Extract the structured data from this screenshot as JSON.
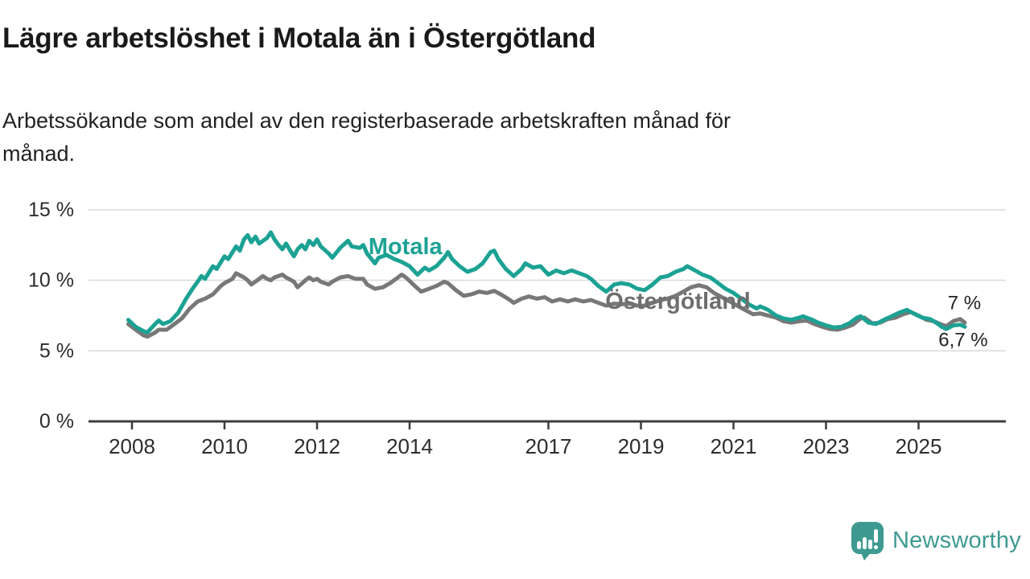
{
  "header": {
    "title": "Lägre arbetslöshet i Motala än i Östergötland",
    "subtitle_lines": [
      "Arbetssökande som andel av den registerbaserade arbetskraften månad för",
      "månad."
    ]
  },
  "footer": {
    "brand": "Newsworthy",
    "brand_color": "#3e9a90",
    "logo_icon": "speech-bubble-bar-chart-icon"
  },
  "chart_data": {
    "type": "line",
    "title": "Lägre arbetslöshet i Motala än i Östergötland",
    "unit": "%",
    "grid": true,
    "legend": "inline-labels",
    "colors": {
      "grid": "#d9d9d9",
      "axis": "#3c3c3c",
      "tick_text": "#2d2d2d"
    },
    "x_axis": {
      "range": [
        2007.05,
        2026.9
      ],
      "ticks": [
        {
          "year": 2008,
          "label": "2008"
        },
        {
          "year": 2010,
          "label": "2010"
        },
        {
          "year": 2012,
          "label": "2012"
        },
        {
          "year": 2014,
          "label": "2014"
        },
        {
          "year": 2017,
          "label": "2017"
        },
        {
          "year": 2019,
          "label": "2019"
        },
        {
          "year": 2021,
          "label": "2021"
        },
        {
          "year": 2023,
          "label": "2023"
        },
        {
          "year": 2025,
          "label": "2025"
        }
      ]
    },
    "y_axis": {
      "range": [
        0,
        15
      ],
      "unit": "%",
      "ticks": [
        {
          "value": 0,
          "label": "0 %"
        },
        {
          "value": 5,
          "label": "5 %"
        },
        {
          "value": 10,
          "label": "10 %"
        },
        {
          "value": 15,
          "label": "15 %"
        }
      ]
    },
    "series": [
      {
        "name": "Motala",
        "color": "#1ca294",
        "latest_value_label": "6,7 %",
        "points": [
          [
            2007.92,
            7.2
          ],
          [
            2008.08,
            6.7
          ],
          [
            2008.25,
            6.4
          ],
          [
            2008.33,
            6.3
          ],
          [
            2008.5,
            6.9
          ],
          [
            2008.58,
            7.15
          ],
          [
            2008.67,
            6.9
          ],
          [
            2008.83,
            7.1
          ],
          [
            2009.0,
            7.7
          ],
          [
            2009.17,
            8.7
          ],
          [
            2009.33,
            9.5
          ],
          [
            2009.42,
            9.9
          ],
          [
            2009.5,
            10.3
          ],
          [
            2009.58,
            10.1
          ],
          [
            2009.75,
            11.0
          ],
          [
            2009.83,
            10.8
          ],
          [
            2010.0,
            11.7
          ],
          [
            2010.08,
            11.5
          ],
          [
            2010.25,
            12.4
          ],
          [
            2010.33,
            12.1
          ],
          [
            2010.42,
            12.9
          ],
          [
            2010.5,
            13.2
          ],
          [
            2010.58,
            12.7
          ],
          [
            2010.67,
            13.1
          ],
          [
            2010.75,
            12.6
          ],
          [
            2010.92,
            13.0
          ],
          [
            2011.0,
            13.4
          ],
          [
            2011.08,
            12.9
          ],
          [
            2011.17,
            12.5
          ],
          [
            2011.25,
            12.2
          ],
          [
            2011.33,
            12.6
          ],
          [
            2011.42,
            12.1
          ],
          [
            2011.5,
            11.7
          ],
          [
            2011.58,
            12.2
          ],
          [
            2011.67,
            12.5
          ],
          [
            2011.75,
            12.2
          ],
          [
            2011.83,
            12.8
          ],
          [
            2011.92,
            12.5
          ],
          [
            2012.0,
            12.9
          ],
          [
            2012.08,
            12.4
          ],
          [
            2012.25,
            11.9
          ],
          [
            2012.33,
            11.6
          ],
          [
            2012.5,
            12.3
          ],
          [
            2012.67,
            12.8
          ],
          [
            2012.75,
            12.4
          ],
          [
            2012.92,
            12.3
          ],
          [
            2013.0,
            12.5
          ],
          [
            2013.08,
            11.9
          ],
          [
            2013.25,
            11.2
          ],
          [
            2013.33,
            11.6
          ],
          [
            2013.5,
            11.8
          ],
          [
            2013.67,
            11.5
          ],
          [
            2013.83,
            11.3
          ],
          [
            2014.0,
            11.0
          ],
          [
            2014.17,
            10.4
          ],
          [
            2014.33,
            10.9
          ],
          [
            2014.42,
            10.7
          ],
          [
            2014.58,
            11.0
          ],
          [
            2014.75,
            11.6
          ],
          [
            2014.83,
            12.0
          ],
          [
            2014.92,
            11.5
          ],
          [
            2015.08,
            11.0
          ],
          [
            2015.25,
            10.6
          ],
          [
            2015.42,
            10.8
          ],
          [
            2015.58,
            11.2
          ],
          [
            2015.75,
            12.0
          ],
          [
            2015.83,
            12.1
          ],
          [
            2015.92,
            11.5
          ],
          [
            2016.08,
            10.8
          ],
          [
            2016.25,
            10.3
          ],
          [
            2016.42,
            10.8
          ],
          [
            2016.5,
            11.2
          ],
          [
            2016.67,
            10.9
          ],
          [
            2016.83,
            11.0
          ],
          [
            2017.0,
            10.4
          ],
          [
            2017.17,
            10.7
          ],
          [
            2017.33,
            10.5
          ],
          [
            2017.5,
            10.7
          ],
          [
            2017.67,
            10.5
          ],
          [
            2017.83,
            10.3
          ],
          [
            2017.92,
            10.1
          ],
          [
            2018.08,
            9.6
          ],
          [
            2018.25,
            9.2
          ],
          [
            2018.42,
            9.7
          ],
          [
            2018.58,
            9.8
          ],
          [
            2018.75,
            9.7
          ],
          [
            2018.92,
            9.4
          ],
          [
            2019.08,
            9.3
          ],
          [
            2019.25,
            9.7
          ],
          [
            2019.42,
            10.2
          ],
          [
            2019.58,
            10.3
          ],
          [
            2019.75,
            10.6
          ],
          [
            2019.92,
            10.8
          ],
          [
            2020.0,
            11.0
          ],
          [
            2020.17,
            10.7
          ],
          [
            2020.33,
            10.4
          ],
          [
            2020.5,
            10.2
          ],
          [
            2020.67,
            9.8
          ],
          [
            2020.83,
            9.4
          ],
          [
            2021.0,
            9.1
          ],
          [
            2021.17,
            8.7
          ],
          [
            2021.33,
            8.3
          ],
          [
            2021.5,
            8.0
          ],
          [
            2021.58,
            8.15
          ],
          [
            2021.75,
            7.9
          ],
          [
            2021.92,
            7.5
          ],
          [
            2022.08,
            7.3
          ],
          [
            2022.25,
            7.2
          ],
          [
            2022.42,
            7.35
          ],
          [
            2022.5,
            7.45
          ],
          [
            2022.67,
            7.25
          ],
          [
            2022.83,
            7.0
          ],
          [
            2023.0,
            6.8
          ],
          [
            2023.17,
            6.65
          ],
          [
            2023.33,
            6.7
          ],
          [
            2023.5,
            6.95
          ],
          [
            2023.67,
            7.35
          ],
          [
            2023.75,
            7.45
          ],
          [
            2023.92,
            7.0
          ],
          [
            2024.08,
            6.9
          ],
          [
            2024.25,
            7.2
          ],
          [
            2024.42,
            7.45
          ],
          [
            2024.58,
            7.7
          ],
          [
            2024.75,
            7.9
          ],
          [
            2024.92,
            7.6
          ],
          [
            2025.08,
            7.35
          ],
          [
            2025.25,
            7.25
          ],
          [
            2025.42,
            6.9
          ],
          [
            2025.5,
            6.7
          ],
          [
            2025.6,
            6.55
          ],
          [
            2025.75,
            6.8
          ],
          [
            2025.9,
            6.85
          ],
          [
            2026.0,
            6.7
          ]
        ]
      },
      {
        "name": "Östergötland",
        "color": "#787878",
        "latest_value_label": "7 %",
        "points": [
          [
            2007.92,
            6.9
          ],
          [
            2008.08,
            6.5
          ],
          [
            2008.25,
            6.1
          ],
          [
            2008.33,
            6.0
          ],
          [
            2008.5,
            6.3
          ],
          [
            2008.58,
            6.5
          ],
          [
            2008.75,
            6.5
          ],
          [
            2008.92,
            6.9
          ],
          [
            2009.08,
            7.3
          ],
          [
            2009.25,
            8.0
          ],
          [
            2009.42,
            8.5
          ],
          [
            2009.58,
            8.7
          ],
          [
            2009.75,
            9.0
          ],
          [
            2009.92,
            9.6
          ],
          [
            2010.0,
            9.8
          ],
          [
            2010.17,
            10.1
          ],
          [
            2010.25,
            10.5
          ],
          [
            2010.42,
            10.2
          ],
          [
            2010.5,
            10.0
          ],
          [
            2010.58,
            9.7
          ],
          [
            2010.75,
            10.1
          ],
          [
            2010.83,
            10.3
          ],
          [
            2010.92,
            10.1
          ],
          [
            2011.0,
            10.0
          ],
          [
            2011.08,
            10.2
          ],
          [
            2011.25,
            10.4
          ],
          [
            2011.33,
            10.2
          ],
          [
            2011.5,
            9.9
          ],
          [
            2011.58,
            9.5
          ],
          [
            2011.75,
            10.0
          ],
          [
            2011.83,
            10.2
          ],
          [
            2011.92,
            10.0
          ],
          [
            2012.0,
            10.1
          ],
          [
            2012.08,
            9.9
          ],
          [
            2012.25,
            9.7
          ],
          [
            2012.33,
            9.9
          ],
          [
            2012.5,
            10.2
          ],
          [
            2012.67,
            10.3
          ],
          [
            2012.83,
            10.1
          ],
          [
            2013.0,
            10.1
          ],
          [
            2013.08,
            9.7
          ],
          [
            2013.25,
            9.4
          ],
          [
            2013.42,
            9.5
          ],
          [
            2013.58,
            9.8
          ],
          [
            2013.75,
            10.2
          ],
          [
            2013.83,
            10.4
          ],
          [
            2013.92,
            10.2
          ],
          [
            2014.08,
            9.7
          ],
          [
            2014.25,
            9.2
          ],
          [
            2014.42,
            9.4
          ],
          [
            2014.58,
            9.6
          ],
          [
            2014.75,
            9.9
          ],
          [
            2014.83,
            9.8
          ],
          [
            2015.0,
            9.3
          ],
          [
            2015.17,
            8.9
          ],
          [
            2015.33,
            9.0
          ],
          [
            2015.5,
            9.2
          ],
          [
            2015.67,
            9.1
          ],
          [
            2015.83,
            9.25
          ],
          [
            2016.0,
            8.95
          ],
          [
            2016.17,
            8.6
          ],
          [
            2016.25,
            8.4
          ],
          [
            2016.42,
            8.7
          ],
          [
            2016.58,
            8.85
          ],
          [
            2016.75,
            8.7
          ],
          [
            2016.92,
            8.8
          ],
          [
            2017.08,
            8.5
          ],
          [
            2017.25,
            8.65
          ],
          [
            2017.42,
            8.5
          ],
          [
            2017.58,
            8.65
          ],
          [
            2017.75,
            8.5
          ],
          [
            2017.92,
            8.6
          ],
          [
            2018.08,
            8.4
          ],
          [
            2018.25,
            8.2
          ],
          [
            2018.42,
            8.35
          ],
          [
            2018.58,
            8.3
          ],
          [
            2018.75,
            8.35
          ],
          [
            2018.92,
            8.2
          ],
          [
            2019.08,
            8.2
          ],
          [
            2019.25,
            8.4
          ],
          [
            2019.42,
            8.6
          ],
          [
            2019.58,
            8.7
          ],
          [
            2019.75,
            8.9
          ],
          [
            2019.92,
            9.2
          ],
          [
            2020.08,
            9.5
          ],
          [
            2020.25,
            9.65
          ],
          [
            2020.42,
            9.5
          ],
          [
            2020.58,
            9.1
          ],
          [
            2020.75,
            8.8
          ],
          [
            2020.92,
            8.5
          ],
          [
            2021.08,
            8.2
          ],
          [
            2021.25,
            7.9
          ],
          [
            2021.42,
            7.6
          ],
          [
            2021.58,
            7.65
          ],
          [
            2021.75,
            7.5
          ],
          [
            2021.92,
            7.35
          ],
          [
            2022.08,
            7.1
          ],
          [
            2022.25,
            7.0
          ],
          [
            2022.42,
            7.1
          ],
          [
            2022.58,
            7.15
          ],
          [
            2022.75,
            6.9
          ],
          [
            2022.92,
            6.7
          ],
          [
            2023.08,
            6.55
          ],
          [
            2023.25,
            6.5
          ],
          [
            2023.42,
            6.65
          ],
          [
            2023.58,
            6.85
          ],
          [
            2023.75,
            7.3
          ],
          [
            2023.83,
            7.35
          ],
          [
            2024.0,
            6.95
          ],
          [
            2024.17,
            7.0
          ],
          [
            2024.33,
            7.25
          ],
          [
            2024.5,
            7.35
          ],
          [
            2024.67,
            7.6
          ],
          [
            2024.83,
            7.75
          ],
          [
            2025.0,
            7.5
          ],
          [
            2025.17,
            7.2
          ],
          [
            2025.33,
            7.1
          ],
          [
            2025.5,
            6.85
          ],
          [
            2025.6,
            6.75
          ],
          [
            2025.75,
            7.1
          ],
          [
            2025.9,
            7.25
          ],
          [
            2026.0,
            7.0
          ]
        ]
      }
    ],
    "annotations": [
      {
        "name": "motala-series-label",
        "text": "Motala",
        "t": 2013.11,
        "value": 12.37,
        "color": "#1ca294",
        "weight": "bold",
        "size": 29
      },
      {
        "name": "ostergotland-series-label",
        "text": "Östergötland",
        "t": 2018.23,
        "value": 8.49,
        "color": "#6e6e6e",
        "weight": "bold",
        "size": 29
      },
      {
        "name": "ostergotland-end-value",
        "text": "7 %",
        "t": 2025.63,
        "value": 8.38,
        "color": "#222222",
        "weight": "normal",
        "size": 24
      },
      {
        "name": "motala-end-value",
        "text": "6,7 %",
        "t": 2025.43,
        "value": 5.76,
        "color": "#222222",
        "weight": "normal",
        "size": 24
      }
    ]
  }
}
